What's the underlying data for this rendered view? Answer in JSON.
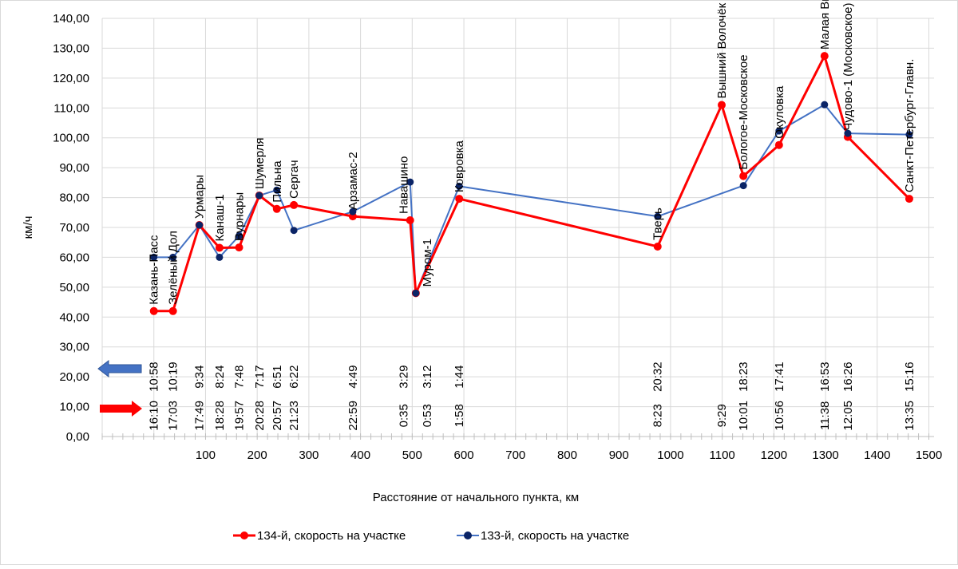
{
  "chart_data": {
    "type": "line",
    "title": "",
    "xlabel": "Расстояние от начального пункта, км",
    "ylabel": "км/ч",
    "xlim": [
      -100,
      1510
    ],
    "ylim": [
      0,
      140
    ],
    "grid": true,
    "legend_position": "bottom",
    "x_ticks": [
      "100",
      "200",
      "300",
      "400",
      "500",
      "600",
      "700",
      "800",
      "900",
      "1000",
      "1100",
      "1200",
      "1300",
      "1400",
      "1500"
    ],
    "x_tick_values": [
      100,
      200,
      300,
      400,
      500,
      600,
      700,
      800,
      900,
      1000,
      1100,
      1200,
      1300,
      1400,
      1500
    ],
    "y_ticks": [
      "0,00",
      "10,00",
      "20,00",
      "30,00",
      "40,00",
      "50,00",
      "60,00",
      "70,00",
      "80,00",
      "90,00",
      "100,00",
      "110,00",
      "120,00",
      "130,00",
      "140,00"
    ],
    "y_tick_values": [
      0,
      10,
      20,
      30,
      40,
      50,
      60,
      70,
      80,
      90,
      100,
      110,
      120,
      130,
      140
    ],
    "series": [
      {
        "name": "134-й, скорость на участке",
        "color": "#ff0000",
        "x": [
          0,
          37,
          88,
          127,
          165,
          204,
          238,
          271,
          385,
          496,
          507,
          591,
          975,
          1099,
          1141,
          1210,
          1298,
          1343,
          1462
        ],
        "values": [
          42,
          42,
          70.8,
          63.2,
          63.3,
          80.7,
          76.2,
          77.5,
          73.7,
          72.4,
          48,
          79.6,
          63.6,
          111,
          87.2,
          97.6,
          127.4,
          100.3,
          79.6
        ]
      },
      {
        "name": "133-й, скорость на участке",
        "color": "#4472c4",
        "marker_color": "#0b2466",
        "x": [
          0,
          37,
          88,
          127,
          165,
          204,
          238,
          271,
          385,
          496,
          507,
          591,
          975,
          1141,
          1210,
          1298,
          1343,
          1462
        ],
        "values": [
          60,
          60,
          70.8,
          60,
          67.2,
          80.7,
          82.5,
          69,
          75.3,
          85.2,
          48,
          83.8,
          73.7,
          84,
          102.3,
          111.1,
          101.5,
          101.1
        ]
      }
    ],
    "stations": [
      {
        "name": "Казань-Пасс",
        "x": 0,
        "y": 42,
        "t133": "10:58",
        "t134": "16:10"
      },
      {
        "name": "Зелёный Дол",
        "x": 37,
        "y": 42,
        "t133": "10:19",
        "t134": "17:03"
      },
      {
        "name": "Урмары",
        "x": 88,
        "y": 70.8,
        "t133": "9:34",
        "t134": "17:49"
      },
      {
        "name": "Канаш-1",
        "x": 127,
        "y": 63.2,
        "t133": "8:24",
        "t134": "18:28"
      },
      {
        "name": "Вурнары",
        "x": 165,
        "y": 63.3,
        "t133": "7:48",
        "t134": "19:57"
      },
      {
        "name": "Шумерля",
        "x": 204,
        "y": 80.7,
        "t133": "7:17",
        "t134": "20:28"
      },
      {
        "name": "Пильна",
        "x": 238,
        "y": 76.2,
        "t133": "6:51",
        "t134": "20:57"
      },
      {
        "name": "Сергач",
        "x": 271,
        "y": 77.5,
        "t133": "6:22",
        "t134": "21:23"
      },
      {
        "name": "Арзамас-2",
        "x": 385,
        "y": 73.7,
        "t133": "4:49",
        "t134": "22:59"
      },
      {
        "name": "Навашино",
        "x": 496,
        "y": 72.4,
        "t133": "3:29",
        "t134": "0:35"
      },
      {
        "name": "Муром-1",
        "x": 507,
        "y": 48,
        "t133": "3:12",
        "t134": "0:53"
      },
      {
        "name": "Ковровка",
        "x": 591,
        "y": 79.6,
        "t133": "1:44",
        "t134": "1:58"
      },
      {
        "name": "Тверь",
        "x": 975,
        "y": 63.6,
        "t133": "20:32",
        "t134": "8:23"
      },
      {
        "name": "Вышний Волочёк",
        "x": 1099,
        "y": 111,
        "t133": "",
        "t134": "9:29"
      },
      {
        "name": "Бологое-Московское",
        "x": 1141,
        "y": 87.2,
        "t133": "18:23",
        "t134": "10:01"
      },
      {
        "name": "Окуловка",
        "x": 1210,
        "y": 97.6,
        "t133": "17:41",
        "t134": "10:56"
      },
      {
        "name": "Малая Вишера",
        "x": 1298,
        "y": 127.4,
        "t133": "16:53",
        "t134": "11:38"
      },
      {
        "name": "Чудово-1 (Московское)",
        "x": 1343,
        "y": 100.3,
        "t133": "16:26",
        "t134": "12:05"
      },
      {
        "name": "Санкт-Петербург-Главн.",
        "x": 1462,
        "y": 79.6,
        "t133": "15:16",
        "t134": "13:35"
      }
    ],
    "direction_arrows": [
      {
        "series": "133-й",
        "direction": "left",
        "color": "#4472c4"
      },
      {
        "series": "134-й",
        "direction": "right",
        "color": "#ff0000"
      }
    ]
  }
}
